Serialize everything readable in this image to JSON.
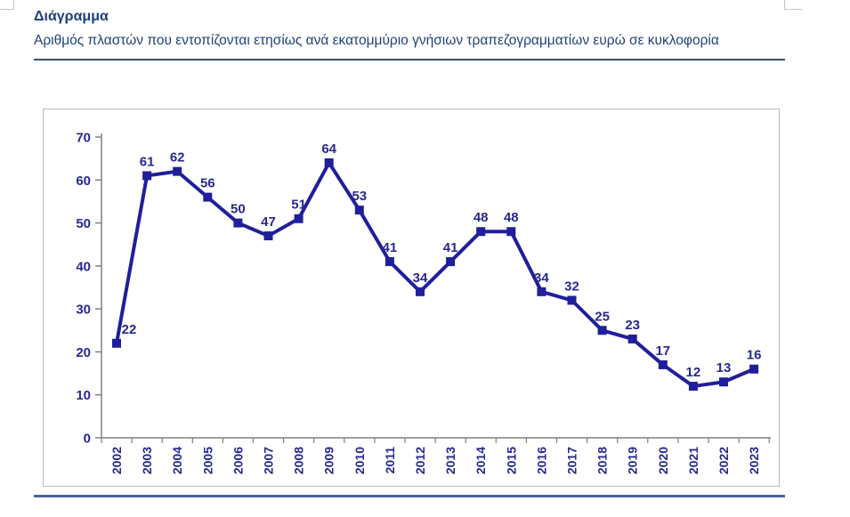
{
  "header": {
    "title": "Διάγραμμα",
    "subtitle": "Αριθμός πλαστών που εντοπίζονται ετησίως ανά εκατομμύριο γνήσιων τραπεζογραμματίων ευρώ σε κυκλοφορία"
  },
  "colors": {
    "title_text": "#1D4178",
    "title_rule": "#31536F",
    "bottom_rule": "#4A649B",
    "box_border": "#BBBBBB",
    "corner_gray": "#C6C6C6",
    "chart_text": "#28288F"
  },
  "chart_data": {
    "type": "line",
    "title": "",
    "xlabel": "",
    "ylabel": "",
    "categories": [
      "2002",
      "2003",
      "2004",
      "2005",
      "2006",
      "2007",
      "2008",
      "2009",
      "2010",
      "2011",
      "2012",
      "2013",
      "2014",
      "2015",
      "2016",
      "2017",
      "2018",
      "2019",
      "2020",
      "2021",
      "2022",
      "2023"
    ],
    "values": [
      22,
      61,
      62,
      56,
      50,
      47,
      51,
      64,
      53,
      41,
      34,
      41,
      48,
      48,
      34,
      32,
      25,
      23,
      17,
      12,
      13,
      16
    ],
    "ylim": [
      0,
      70
    ],
    "ytick_step": 10,
    "grid": false,
    "legend": false,
    "marker": "square",
    "data_labels": true,
    "x_labels_rotated_degrees": -90,
    "label_dx": [
      14,
      0,
      0,
      0,
      0,
      0,
      0,
      0,
      0,
      0,
      0,
      0,
      0,
      0,
      0,
      0,
      0,
      0,
      0,
      0,
      0,
      0
    ],
    "colors": {
      "series": "#1F1F9C",
      "chart_text": "#28288F",
      "axis": "#808080"
    }
  }
}
